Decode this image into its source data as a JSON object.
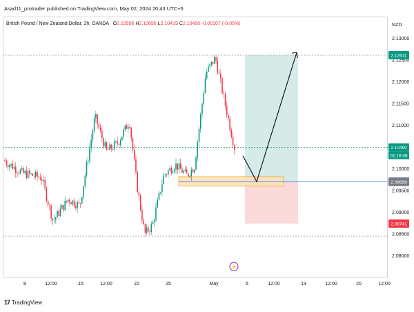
{
  "publish_line": "Asad11_protrader published on TradingView.com, May 02, 2024 20:43 UTC+5",
  "legend": {
    "symbol": "British Pound / New Zealand Dollar, 2h, OANDA",
    "o_label": "O",
    "o": "2.10596",
    "h_label": "H",
    "h": "2.10695",
    "l_label": "L",
    "l": "2.10419",
    "c_label": "C",
    "c": "2.10490",
    "change": "-0.00107 (-0.05%)"
  },
  "currency": "NZD",
  "colors": {
    "up": "#089981",
    "down": "#f23645",
    "target_zone": "#cfe8e4",
    "stop_zone": "#f9d3d4",
    "entry_line": "#2962ff",
    "support_box": "#f7a825"
  },
  "footer": {
    "brand": "TradingView",
    "logo": "17"
  },
  "chart_data": {
    "type": "candlestick",
    "title": "British Pound / New Zealand Dollar, 2h, OANDA",
    "ylim": [
      2.075,
      2.135
    ],
    "y_ticks": [
      "2.13000",
      "2.12500",
      "2.12000",
      "2.11500",
      "2.11000",
      "2.10500",
      "2.10000",
      "2.09500",
      "2.09000",
      "2.08500",
      "2.08000"
    ],
    "x_ticks": [
      "8",
      "12:00",
      "15",
      "12:00",
      "22",
      "25",
      "May",
      "6",
      "12:00",
      "13",
      "12:00",
      "20",
      "12:00"
    ],
    "price_badges": [
      {
        "label": "2.12611",
        "value": 2.12611,
        "color": "#089981"
      },
      {
        "label": "2.10490",
        "value": 2.1049,
        "color": "#089981",
        "sub": "01:16:08"
      },
      {
        "label": "2.09704",
        "value": 2.09704,
        "color": "#2962ff"
      },
      {
        "label": "2.09699",
        "value": 2.09699,
        "color": "#787b86"
      },
      {
        "label": "2.08741",
        "value": 2.08741,
        "color": "#f23645"
      }
    ],
    "path_points": [
      {
        "x": 0.0,
        "y": 2.102
      },
      {
        "x": 0.05,
        "y": 2.099
      },
      {
        "x": 0.1,
        "y": 2.098
      },
      {
        "x": 0.13,
        "y": 2.088
      },
      {
        "x": 0.17,
        "y": 2.093
      },
      {
        "x": 0.2,
        "y": 2.0915
      },
      {
        "x": 0.24,
        "y": 2.112
      },
      {
        "x": 0.27,
        "y": 2.104
      },
      {
        "x": 0.3,
        "y": 2.106
      },
      {
        "x": 0.33,
        "y": 2.111
      },
      {
        "x": 0.35,
        "y": 2.096
      },
      {
        "x": 0.37,
        "y": 2.085
      },
      {
        "x": 0.39,
        "y": 2.087
      },
      {
        "x": 0.42,
        "y": 2.0985
      },
      {
        "x": 0.45,
        "y": 2.101
      },
      {
        "x": 0.48,
        "y": 2.0985
      },
      {
        "x": 0.5,
        "y": 2.1005
      },
      {
        "x": 0.53,
        "y": 2.122
      },
      {
        "x": 0.555,
        "y": 2.1255
      },
      {
        "x": 0.58,
        "y": 2.115
      },
      {
        "x": 0.605,
        "y": 2.1049
      }
    ]
  }
}
